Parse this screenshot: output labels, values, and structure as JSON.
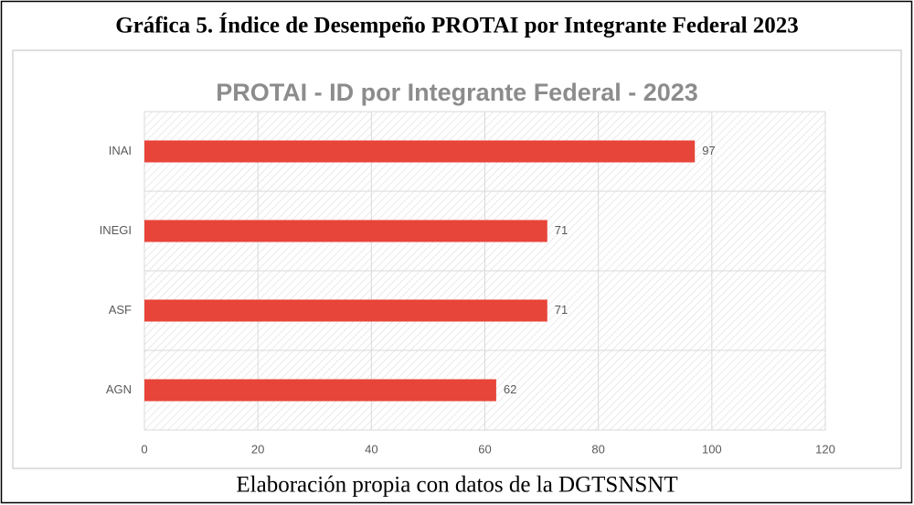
{
  "heading": "Gráfica 5. Índice de Desempeño PROTAI por Integrante Federal 2023",
  "caption": "Elaboración propia con datos de la DGTSNSNT",
  "chart_data": {
    "type": "hbar",
    "title": "PROTAI - ID por Integrante Federal - 2023",
    "categories": [
      "INAI",
      "INEGI",
      "ASF",
      "AGN"
    ],
    "values": [
      97,
      71,
      71,
      62
    ],
    "color": "#e8453a",
    "xlim": [
      0,
      120
    ],
    "xticks": [
      0,
      20,
      40,
      60,
      80,
      100,
      120
    ],
    "grid": true
  }
}
